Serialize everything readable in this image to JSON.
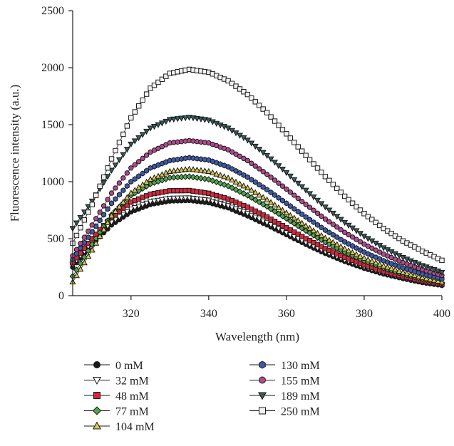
{
  "chart_data": {
    "type": "scatter",
    "title": "",
    "xlabel": "Wavelength (nm)",
    "ylabel": "Fluorescence intensity (a.u.)",
    "xlim": [
      305,
      400
    ],
    "ylim": [
      0,
      2500
    ],
    "xticks": [
      320,
      340,
      360,
      380,
      400
    ],
    "yticks": [
      0,
      500,
      1000,
      1500,
      2000,
      2500
    ],
    "grid": false,
    "legend_position": "bottom, two columns",
    "x": [
      305,
      310,
      315,
      320,
      325,
      330,
      335,
      340,
      345,
      350,
      355,
      360,
      365,
      370,
      375,
      380,
      385,
      390,
      395,
      400
    ],
    "series": [
      {
        "name": "0 mM",
        "marker": "circle",
        "color": "#1a1a1a",
        "values": [
          250,
          450,
          620,
          735,
          800,
          830,
          835,
          815,
          770,
          700,
          620,
          535,
          450,
          370,
          300,
          240,
          190,
          150,
          115,
          90
        ]
      },
      {
        "name": "32 mM",
        "marker": "triangle-down-open",
        "color": "#ffffff",
        "values": [
          270,
          470,
          645,
          760,
          825,
          855,
          858,
          838,
          790,
          722,
          640,
          552,
          465,
          385,
          313,
          252,
          200,
          158,
          122,
          95
        ]
      },
      {
        "name": "48 mM",
        "marker": "square",
        "color": "#d7263d",
        "values": [
          290,
          500,
          690,
          820,
          890,
          920,
          922,
          898,
          848,
          776,
          690,
          595,
          500,
          413,
          336,
          270,
          214,
          168,
          130,
          100
        ]
      },
      {
        "name": "77 mM",
        "marker": "diamond",
        "color": "#4fa84a",
        "values": [
          170,
          450,
          710,
          880,
          980,
          1035,
          1045,
          1020,
          962,
          880,
          782,
          677,
          570,
          470,
          382,
          306,
          242,
          190,
          147,
          112
        ]
      },
      {
        "name": "104 mM",
        "marker": "triangle-up",
        "color": "#d9c84a",
        "values": [
          120,
          400,
          700,
          900,
          1020,
          1090,
          1110,
          1090,
          1032,
          945,
          840,
          726,
          612,
          505,
          410,
          328,
          260,
          204,
          158,
          120
        ]
      },
      {
        "name": "130 mM",
        "marker": "hexagon",
        "color": "#3b5ba9",
        "values": [
          320,
          560,
          810,
          1000,
          1120,
          1185,
          1210,
          1190,
          1130,
          1040,
          930,
          810,
          690,
          575,
          472,
          382,
          306,
          243,
          190,
          148
        ]
      },
      {
        "name": "155 mM",
        "marker": "circle",
        "color": "#b04a8c",
        "values": [
          350,
          620,
          900,
          1120,
          1260,
          1340,
          1360,
          1340,
          1280,
          1185,
          1065,
          935,
          800,
          672,
          555,
          452,
          364,
          290,
          228,
          178
        ]
      },
      {
        "name": "189 mM",
        "marker": "triangle-down",
        "color": "#3a5a5a",
        "values": [
          590,
          830,
          1100,
          1330,
          1470,
          1545,
          1565,
          1540,
          1470,
          1365,
          1230,
          1080,
          925,
          778,
          642,
          522,
          420,
          335,
          264,
          205
        ]
      },
      {
        "name": "250 mM",
        "marker": "square-open",
        "color": "#f2f2f2",
        "values": [
          460,
          800,
          1200,
          1560,
          1820,
          1950,
          1985,
          1960,
          1885,
          1765,
          1605,
          1420,
          1230,
          1045,
          872,
          720,
          590,
          480,
          390,
          310
        ]
      }
    ]
  }
}
